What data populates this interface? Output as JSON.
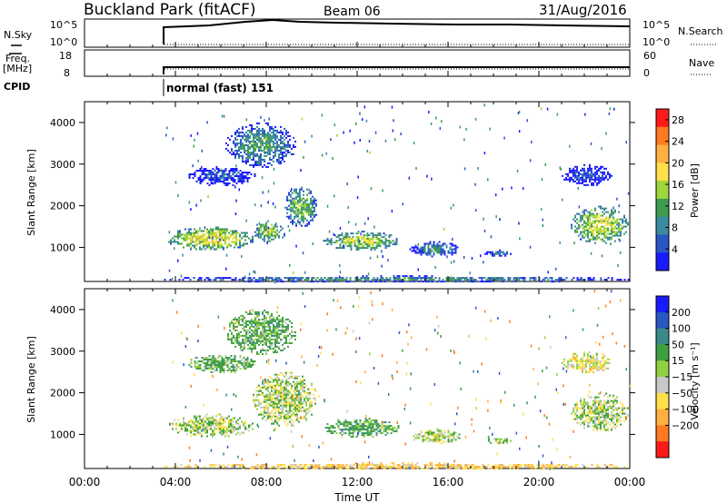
{
  "header": {
    "title": "Buckland Park (fitACF)",
    "beam": "Beam 06",
    "date": "31/Aug/2016"
  },
  "sky_panel": {
    "left_label": "N.Sky",
    "left_ticks": [
      "10^5",
      "10^0"
    ],
    "right_ticks": [
      "10^5",
      "10^0"
    ],
    "right_label": "N.Search"
  },
  "freq_panel": {
    "left_label_top": "Freq.",
    "left_label_bottom": "[MHz]",
    "left_ticks": [
      "18",
      "8"
    ],
    "right_ticks": [
      "60",
      "0"
    ],
    "right_label": "Nave"
  },
  "cpid": {
    "label": "CPID",
    "mode": "normal (fast) 151"
  },
  "chart_data": [
    {
      "type": "heatmap",
      "name": "power",
      "ylabel": "Slant Range [km]",
      "yticks": [
        1000,
        2000,
        3000,
        4000
      ],
      "ylim": [
        180,
        4500
      ],
      "xlim": [
        0,
        24
      ],
      "data_start_hour": 3.5,
      "colorbar_label": "Power [dB]",
      "colorbar_ticks": [
        4,
        8,
        12,
        16,
        20,
        24,
        28
      ],
      "colorbar_range": [
        0,
        30
      ],
      "colors": [
        "#1a1aff",
        "#2a56c4",
        "#3a8aa0",
        "#3f9b50",
        "#9fd63a",
        "#ffe04a",
        "#ffb040",
        "#ff7a20",
        "#ff1a1a"
      ],
      "regions": [
        {
          "t0": 3.6,
          "t1": 7.4,
          "r0": 950,
          "r1": 1500,
          "level": 18
        },
        {
          "t0": 7.4,
          "t1": 8.8,
          "r0": 1150,
          "r1": 1650,
          "level": 16
        },
        {
          "t0": 8.8,
          "t1": 10.2,
          "r0": 1500,
          "r1": 2500,
          "level": 14
        },
        {
          "t0": 4.5,
          "t1": 7.5,
          "r0": 2500,
          "r1": 2950,
          "level": 6
        },
        {
          "t0": 6.2,
          "t1": 9.3,
          "r0": 2950,
          "r1": 4000,
          "level": 11
        },
        {
          "t0": 10.5,
          "t1": 13.8,
          "r0": 950,
          "r1": 1400,
          "level": 16
        },
        {
          "t0": 14.3,
          "t1": 16.5,
          "r0": 800,
          "r1": 1150,
          "level": 10
        },
        {
          "t0": 17.6,
          "t1": 18.8,
          "r0": 800,
          "r1": 950,
          "level": 8
        },
        {
          "t0": 21.4,
          "t1": 23.9,
          "r0": 1100,
          "r1": 2000,
          "level": 17
        },
        {
          "t0": 21.0,
          "t1": 23.2,
          "r0": 2500,
          "r1": 3000,
          "level": 5
        },
        {
          "t0": 3.5,
          "t1": 24.0,
          "r0": 180,
          "r1": 330,
          "level": 10
        }
      ]
    },
    {
      "type": "heatmap",
      "name": "velocity",
      "xlabel": "Time UT",
      "xticks": [
        "00:00",
        "04:00",
        "08:00",
        "12:00",
        "16:00",
        "20:00",
        "00:00"
      ],
      "ylabel": "Slant Range [km]",
      "yticks": [
        1000,
        2000,
        3000,
        4000
      ],
      "ylim": [
        180,
        4500
      ],
      "xlim": [
        0,
        24
      ],
      "data_start_hour": 3.5,
      "colorbar_label": "Velocity [m s⁻¹]",
      "colorbar_ticks": [
        200,
        100,
        50,
        15,
        -15,
        -50,
        -100,
        -200
      ],
      "colors": [
        "#1a1aff",
        "#2a56c4",
        "#3a8a8a",
        "#3fa040",
        "#90d040",
        "#c8c8c8",
        "#ffe04a",
        "#ffb040",
        "#ff7a20",
        "#ff1a1a"
      ],
      "regions": [
        {
          "t0": 3.6,
          "t1": 7.4,
          "r0": 950,
          "r1": 1500,
          "level": 0
        },
        {
          "t0": 7.4,
          "t1": 10.2,
          "r0": 1200,
          "r1": 2500,
          "level": 0
        },
        {
          "t0": 4.5,
          "t1": 7.5,
          "r0": 2500,
          "r1": 2950,
          "level": 20
        },
        {
          "t0": 6.2,
          "t1": 9.3,
          "r0": 2950,
          "r1": 4000,
          "level": 25
        },
        {
          "t0": 10.5,
          "t1": 13.8,
          "r0": 950,
          "r1": 1400,
          "level": 35
        },
        {
          "t0": 14.3,
          "t1": 16.5,
          "r0": 800,
          "r1": 1150,
          "level": 0
        },
        {
          "t0": 17.6,
          "t1": 18.8,
          "r0": 800,
          "r1": 950,
          "level": 10
        },
        {
          "t0": 21.4,
          "t1": 23.9,
          "r0": 1100,
          "r1": 2000,
          "level": 0
        },
        {
          "t0": 21.0,
          "t1": 23.2,
          "r0": 2500,
          "r1": 3000,
          "level": -20
        },
        {
          "t0": 3.5,
          "t1": 24.0,
          "r0": 180,
          "r1": 330,
          "level": -40
        }
      ]
    }
  ]
}
